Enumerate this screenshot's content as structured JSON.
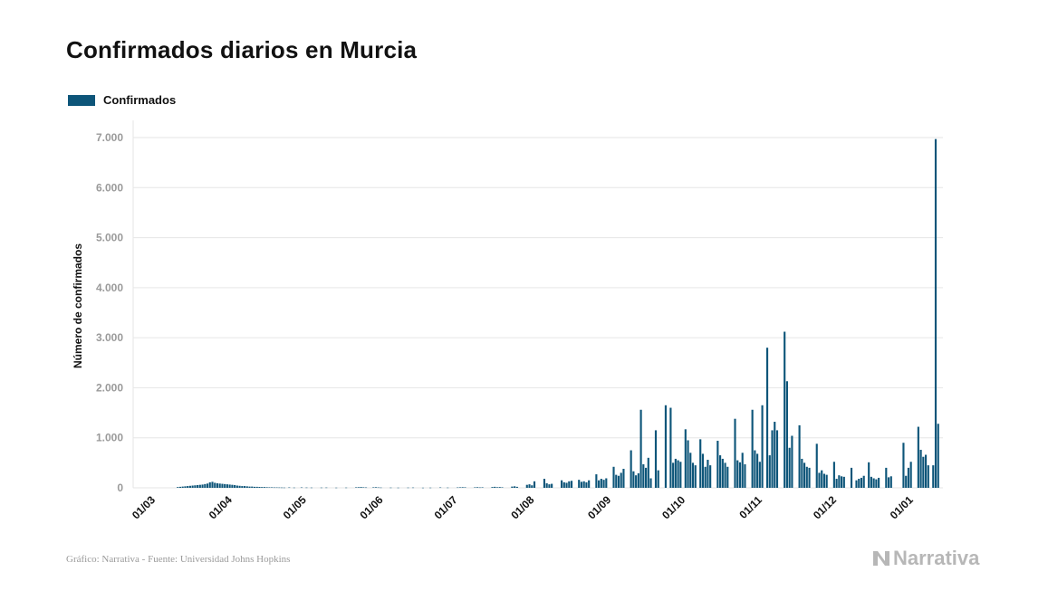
{
  "title": "Confirmados diarios en Murcia",
  "colors": {
    "bar": "#0d5579",
    "grid": "#e6e6e6",
    "tick_text": "#9a9a9a",
    "axis_title": "#111111"
  },
  "legend": {
    "label": "Confirmados",
    "placement": "top-left"
  },
  "footer": {
    "source": "Gráfico: Narrativa - Fuente: Universidad Johns Hopkins",
    "brand": "Narrativa",
    "brand_icon": "narrativa-logo-icon"
  },
  "chart_data": {
    "type": "bar",
    "title": "Confirmados diarios en Murcia",
    "ylabel": "Número de confirmados",
    "xlabel": "",
    "ylim": [
      0,
      7000
    ],
    "yticks": [
      0,
      1000,
      2000,
      3000,
      4000,
      5000,
      6000,
      7000
    ],
    "ytick_labels": [
      "0",
      "1.000",
      "2.000",
      "3.000",
      "4.000",
      "5.000",
      "6.000",
      "7.000"
    ],
    "grid": true,
    "x_start": "2020-02-26",
    "x_end": "2021-01-15",
    "xtick_labels": [
      {
        "date": "2020-03-01",
        "label": "01/03"
      },
      {
        "date": "2020-04-01",
        "label": "01/04"
      },
      {
        "date": "2020-05-01",
        "label": "01/05"
      },
      {
        "date": "2020-06-01",
        "label": "01/06"
      },
      {
        "date": "2020-07-01",
        "label": "01/07"
      },
      {
        "date": "2020-08-01",
        "label": "01/08"
      },
      {
        "date": "2020-09-01",
        "label": "01/09"
      },
      {
        "date": "2020-10-01",
        "label": "01/10"
      },
      {
        "date": "2020-11-01",
        "label": "01/11"
      },
      {
        "date": "2020-12-01",
        "label": "01/12"
      },
      {
        "date": "2021-01-01",
        "label": "01/01"
      }
    ],
    "series": [
      {
        "name": "Confirmados",
        "points": [
          [
            "2020-03-15",
            15
          ],
          [
            "2020-03-16",
            20
          ],
          [
            "2020-03-17",
            25
          ],
          [
            "2020-03-18",
            30
          ],
          [
            "2020-03-19",
            35
          ],
          [
            "2020-03-20",
            40
          ],
          [
            "2020-03-21",
            45
          ],
          [
            "2020-03-22",
            50
          ],
          [
            "2020-03-23",
            55
          ],
          [
            "2020-03-24",
            60
          ],
          [
            "2020-03-25",
            65
          ],
          [
            "2020-03-26",
            75
          ],
          [
            "2020-03-27",
            85
          ],
          [
            "2020-03-28",
            110
          ],
          [
            "2020-03-29",
            120
          ],
          [
            "2020-03-30",
            100
          ],
          [
            "2020-03-31",
            90
          ],
          [
            "2020-04-01",
            85
          ],
          [
            "2020-04-02",
            80
          ],
          [
            "2020-04-03",
            75
          ],
          [
            "2020-04-04",
            70
          ],
          [
            "2020-04-05",
            65
          ],
          [
            "2020-04-06",
            60
          ],
          [
            "2020-04-07",
            55
          ],
          [
            "2020-04-08",
            45
          ],
          [
            "2020-04-09",
            40
          ],
          [
            "2020-04-10",
            35
          ],
          [
            "2020-04-11",
            35
          ],
          [
            "2020-04-12",
            30
          ],
          [
            "2020-04-13",
            25
          ],
          [
            "2020-04-14",
            25
          ],
          [
            "2020-04-15",
            20
          ],
          [
            "2020-04-16",
            20
          ],
          [
            "2020-04-17",
            18
          ],
          [
            "2020-04-18",
            15
          ],
          [
            "2020-04-19",
            15
          ],
          [
            "2020-04-20",
            12
          ],
          [
            "2020-04-21",
            10
          ],
          [
            "2020-04-22",
            10
          ],
          [
            "2020-04-23",
            8
          ],
          [
            "2020-04-24",
            8
          ],
          [
            "2020-04-25",
            7
          ],
          [
            "2020-04-26",
            6
          ],
          [
            "2020-04-27",
            5
          ],
          [
            "2020-04-29",
            8
          ],
          [
            "2020-05-01",
            5
          ],
          [
            "2020-05-04",
            8
          ],
          [
            "2020-05-06",
            6
          ],
          [
            "2020-05-08",
            5
          ],
          [
            "2020-05-12",
            5
          ],
          [
            "2020-05-14",
            6
          ],
          [
            "2020-05-18",
            4
          ],
          [
            "2020-05-22",
            5
          ],
          [
            "2020-05-26",
            10
          ],
          [
            "2020-05-27",
            12
          ],
          [
            "2020-05-28",
            15
          ],
          [
            "2020-05-29",
            10
          ],
          [
            "2020-05-30",
            8
          ],
          [
            "2020-06-02",
            10
          ],
          [
            "2020-06-03",
            12
          ],
          [
            "2020-06-04",
            8
          ],
          [
            "2020-06-05",
            6
          ],
          [
            "2020-06-09",
            5
          ],
          [
            "2020-06-12",
            4
          ],
          [
            "2020-06-16",
            5
          ],
          [
            "2020-06-18",
            6
          ],
          [
            "2020-06-22",
            3
          ],
          [
            "2020-06-25",
            4
          ],
          [
            "2020-06-29",
            8
          ],
          [
            "2020-07-02",
            5
          ],
          [
            "2020-07-06",
            8
          ],
          [
            "2020-07-07",
            10
          ],
          [
            "2020-07-08",
            12
          ],
          [
            "2020-07-09",
            10
          ],
          [
            "2020-07-13",
            10
          ],
          [
            "2020-07-14",
            12
          ],
          [
            "2020-07-15",
            8
          ],
          [
            "2020-07-16",
            10
          ],
          [
            "2020-07-20",
            15
          ],
          [
            "2020-07-21",
            20
          ],
          [
            "2020-07-22",
            12
          ],
          [
            "2020-07-23",
            15
          ],
          [
            "2020-07-24",
            10
          ],
          [
            "2020-07-28",
            25
          ],
          [
            "2020-07-29",
            30
          ],
          [
            "2020-07-30",
            20
          ],
          [
            "2020-08-03",
            60
          ],
          [
            "2020-08-04",
            70
          ],
          [
            "2020-08-05",
            50
          ],
          [
            "2020-08-06",
            130
          ],
          [
            "2020-08-10",
            180
          ],
          [
            "2020-08-11",
            90
          ],
          [
            "2020-08-12",
            70
          ],
          [
            "2020-08-13",
            80
          ],
          [
            "2020-08-17",
            150
          ],
          [
            "2020-08-18",
            110
          ],
          [
            "2020-08-19",
            100
          ],
          [
            "2020-08-20",
            130
          ],
          [
            "2020-08-21",
            140
          ],
          [
            "2020-08-24",
            160
          ],
          [
            "2020-08-25",
            120
          ],
          [
            "2020-08-26",
            130
          ],
          [
            "2020-08-27",
            110
          ],
          [
            "2020-08-28",
            150
          ],
          [
            "2020-08-31",
            270
          ],
          [
            "2020-09-01",
            150
          ],
          [
            "2020-09-02",
            180
          ],
          [
            "2020-09-03",
            160
          ],
          [
            "2020-09-04",
            190
          ],
          [
            "2020-09-07",
            420
          ],
          [
            "2020-09-08",
            260
          ],
          [
            "2020-09-09",
            240
          ],
          [
            "2020-09-10",
            300
          ],
          [
            "2020-09-11",
            380
          ],
          [
            "2020-09-14",
            750
          ],
          [
            "2020-09-15",
            330
          ],
          [
            "2020-09-16",
            250
          ],
          [
            "2020-09-17",
            290
          ],
          [
            "2020-09-18",
            1560
          ],
          [
            "2020-09-19",
            470
          ],
          [
            "2020-09-20",
            400
          ],
          [
            "2020-09-21",
            600
          ],
          [
            "2020-09-22",
            190
          ],
          [
            "2020-09-24",
            1150
          ],
          [
            "2020-09-25",
            350
          ],
          [
            "2020-09-28",
            1650
          ],
          [
            "2020-09-30",
            1600
          ],
          [
            "2020-10-01",
            500
          ],
          [
            "2020-10-02",
            580
          ],
          [
            "2020-10-03",
            550
          ],
          [
            "2020-10-04",
            520
          ],
          [
            "2020-10-06",
            1170
          ],
          [
            "2020-10-07",
            950
          ],
          [
            "2020-10-08",
            700
          ],
          [
            "2020-10-09",
            500
          ],
          [
            "2020-10-10",
            450
          ],
          [
            "2020-10-12",
            970
          ],
          [
            "2020-10-13",
            680
          ],
          [
            "2020-10-14",
            420
          ],
          [
            "2020-10-15",
            560
          ],
          [
            "2020-10-16",
            450
          ],
          [
            "2020-10-19",
            940
          ],
          [
            "2020-10-20",
            650
          ],
          [
            "2020-10-21",
            580
          ],
          [
            "2020-10-22",
            500
          ],
          [
            "2020-10-23",
            420
          ],
          [
            "2020-10-26",
            1380
          ],
          [
            "2020-10-27",
            550
          ],
          [
            "2020-10-28",
            510
          ],
          [
            "2020-10-29",
            700
          ],
          [
            "2020-10-30",
            470
          ],
          [
            "2020-11-02",
            1560
          ],
          [
            "2020-11-03",
            750
          ],
          [
            "2020-11-04",
            680
          ],
          [
            "2020-11-05",
            520
          ],
          [
            "2020-11-06",
            1650
          ],
          [
            "2020-11-08",
            2800
          ],
          [
            "2020-11-09",
            650
          ],
          [
            "2020-11-10",
            1150
          ],
          [
            "2020-11-11",
            1320
          ],
          [
            "2020-11-12",
            1150
          ],
          [
            "2020-11-15",
            3120
          ],
          [
            "2020-11-16",
            2130
          ],
          [
            "2020-11-17",
            800
          ],
          [
            "2020-11-18",
            1040
          ],
          [
            "2020-11-21",
            1250
          ],
          [
            "2020-11-22",
            580
          ],
          [
            "2020-11-23",
            500
          ],
          [
            "2020-11-24",
            420
          ],
          [
            "2020-11-25",
            400
          ],
          [
            "2020-11-28",
            880
          ],
          [
            "2020-11-29",
            300
          ],
          [
            "2020-11-30",
            350
          ],
          [
            "2020-12-01",
            280
          ],
          [
            "2020-12-02",
            260
          ],
          [
            "2020-12-05",
            520
          ],
          [
            "2020-12-06",
            180
          ],
          [
            "2020-12-07",
            250
          ],
          [
            "2020-12-08",
            230
          ],
          [
            "2020-12-09",
            220
          ],
          [
            "2020-12-12",
            400
          ],
          [
            "2020-12-14",
            150
          ],
          [
            "2020-12-15",
            180
          ],
          [
            "2020-12-16",
            200
          ],
          [
            "2020-12-17",
            240
          ],
          [
            "2020-12-19",
            510
          ],
          [
            "2020-12-20",
            220
          ],
          [
            "2020-12-21",
            190
          ],
          [
            "2020-12-22",
            170
          ],
          [
            "2020-12-23",
            200
          ],
          [
            "2020-12-26",
            400
          ],
          [
            "2020-12-27",
            210
          ],
          [
            "2020-12-28",
            230
          ],
          [
            "2021-01-02",
            900
          ],
          [
            "2021-01-03",
            240
          ],
          [
            "2021-01-04",
            400
          ],
          [
            "2021-01-05",
            520
          ],
          [
            "2021-01-08",
            1220
          ],
          [
            "2021-01-09",
            760
          ],
          [
            "2021-01-10",
            620
          ],
          [
            "2021-01-11",
            660
          ],
          [
            "2021-01-12",
            450
          ],
          [
            "2021-01-14",
            450
          ],
          [
            "2021-01-15",
            6970
          ],
          [
            "2021-01-16",
            1280
          ]
        ]
      }
    ]
  }
}
